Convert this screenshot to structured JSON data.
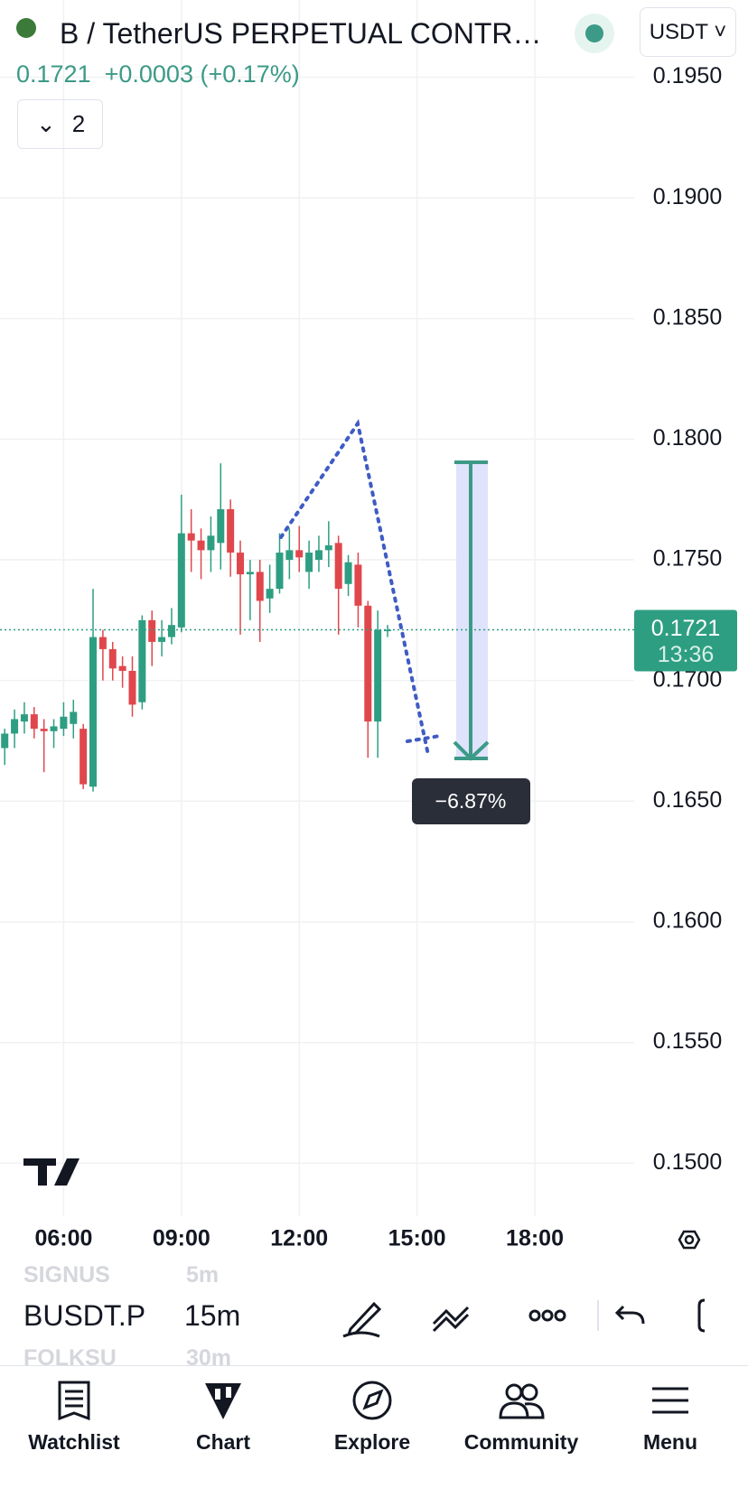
{
  "header": {
    "symbol_title": "B / TetherUS PERPETUAL CONTR…",
    "currency": "USDT",
    "price": "0.1721",
    "change": "+0.0003",
    "change_percent": "(+0.17%)",
    "indicators_count": "2"
  },
  "chart_data": {
    "type": "candlestick",
    "x": [
      4.5,
      4.75,
      5,
      5.25,
      5.5,
      5.75,
      6,
      6.25,
      6.5,
      6.75,
      7,
      7.25,
      7.5,
      7.75,
      8,
      8.25,
      8.5,
      8.75,
      9,
      9.25,
      9.5,
      9.75,
      10,
      10.25,
      10.5,
      10.75,
      11,
      11.25,
      11.5,
      11.75,
      12,
      12.25,
      12.5,
      12.75,
      13,
      13.25,
      13.5,
      13.75,
      14,
      14.25
    ],
    "open": [
      0.1672,
      0.1678,
      0.1683,
      0.1686,
      0.168,
      0.1679,
      0.168,
      0.1682,
      0.168,
      0.1656,
      0.1718,
      0.1713,
      0.1706,
      0.1704,
      0.1691,
      0.1725,
      0.1716,
      0.1718,
      0.1722,
      0.1761,
      0.1758,
      0.1754,
      0.1757,
      0.1771,
      0.1753,
      0.1744,
      0.1745,
      0.1734,
      0.1738,
      0.175,
      0.1754,
      0.1745,
      0.175,
      0.1754,
      0.1757,
      0.174,
      0.1748,
      0.1731,
      0.1683,
      0.1721
    ],
    "high": [
      0.168,
      0.1688,
      0.1691,
      0.1689,
      0.1684,
      0.1684,
      0.1691,
      0.1692,
      0.1682,
      0.1738,
      0.1721,
      0.1716,
      0.171,
      0.171,
      0.1727,
      0.1729,
      0.1725,
      0.173,
      0.1777,
      0.1771,
      0.1763,
      0.1768,
      0.179,
      0.1775,
      0.1758,
      0.175,
      0.175,
      0.1748,
      0.1761,
      0.1763,
      0.1764,
      0.1758,
      0.176,
      0.1766,
      0.176,
      0.1752,
      0.1753,
      0.1733,
      0.1729,
      0.1723
    ],
    "low": [
      0.1665,
      0.1672,
      0.1678,
      0.1676,
      0.1662,
      0.1672,
      0.1677,
      0.1676,
      0.1655,
      0.1654,
      0.17,
      0.17,
      0.1697,
      0.1685,
      0.1688,
      0.1706,
      0.171,
      0.1715,
      0.172,
      0.1745,
      0.1742,
      0.1745,
      0.1746,
      0.1743,
      0.1719,
      0.1725,
      0.1716,
      0.1728,
      0.1736,
      0.1742,
      0.1745,
      0.1738,
      0.1745,
      0.1747,
      0.1719,
      0.1735,
      0.1722,
      0.1668,
      0.1668,
      0.1718
    ],
    "close": [
      0.1678,
      0.1684,
      0.1686,
      0.168,
      0.1679,
      0.1681,
      0.1685,
      0.1687,
      0.1657,
      0.1718,
      0.1713,
      0.1705,
      0.1704,
      0.169,
      0.1725,
      0.1716,
      0.1718,
      0.1723,
      0.1761,
      0.1758,
      0.1754,
      0.176,
      0.1771,
      0.1753,
      0.1744,
      0.1745,
      0.1733,
      0.1738,
      0.1753,
      0.1754,
      0.1751,
      0.1753,
      0.1754,
      0.1756,
      0.1738,
      0.1749,
      0.1731,
      0.1683,
      0.1721,
      0.1721
    ],
    "up_color": "#2e9e82",
    "down_color": "#e0474c",
    "xlim": [
      4.38,
      20.53
    ],
    "ylim": [
      0.1478,
      0.1982
    ],
    "xticks": [
      {
        "value": 6,
        "label": "06:00"
      },
      {
        "value": 9,
        "label": "09:00"
      },
      {
        "value": 12,
        "label": "12:00"
      },
      {
        "value": 15,
        "label": "15:00"
      },
      {
        "value": 18,
        "label": "18:00"
      }
    ],
    "yticks": [
      {
        "value": 0.195,
        "label": "0.1950"
      },
      {
        "value": 0.19,
        "label": "0.1900"
      },
      {
        "value": 0.185,
        "label": "0.1850"
      },
      {
        "value": 0.18,
        "label": "0.1800"
      },
      {
        "value": 0.175,
        "label": "0.1750"
      },
      {
        "value": 0.17,
        "label": "0.1700"
      },
      {
        "value": 0.165,
        "label": "0.1650"
      },
      {
        "value": 0.16,
        "label": "0.1600"
      },
      {
        "value": 0.155,
        "label": "0.1550"
      },
      {
        "value": 0.15,
        "label": "0.1500"
      }
    ],
    "grid": true,
    "last_price": 0.1721,
    "countdown": "13:36"
  },
  "drawings": {
    "measure_label": "−6.87%"
  },
  "symbol_strip": {
    "previous": "SIGNUS",
    "current": "BUSDT.P",
    "next": "FOLKSU",
    "interval_previous": "5m",
    "interval": "15m",
    "interval_next": "30m"
  },
  "nav": [
    "Watchlist",
    "Chart",
    "Explore",
    "Community",
    "Menu"
  ]
}
